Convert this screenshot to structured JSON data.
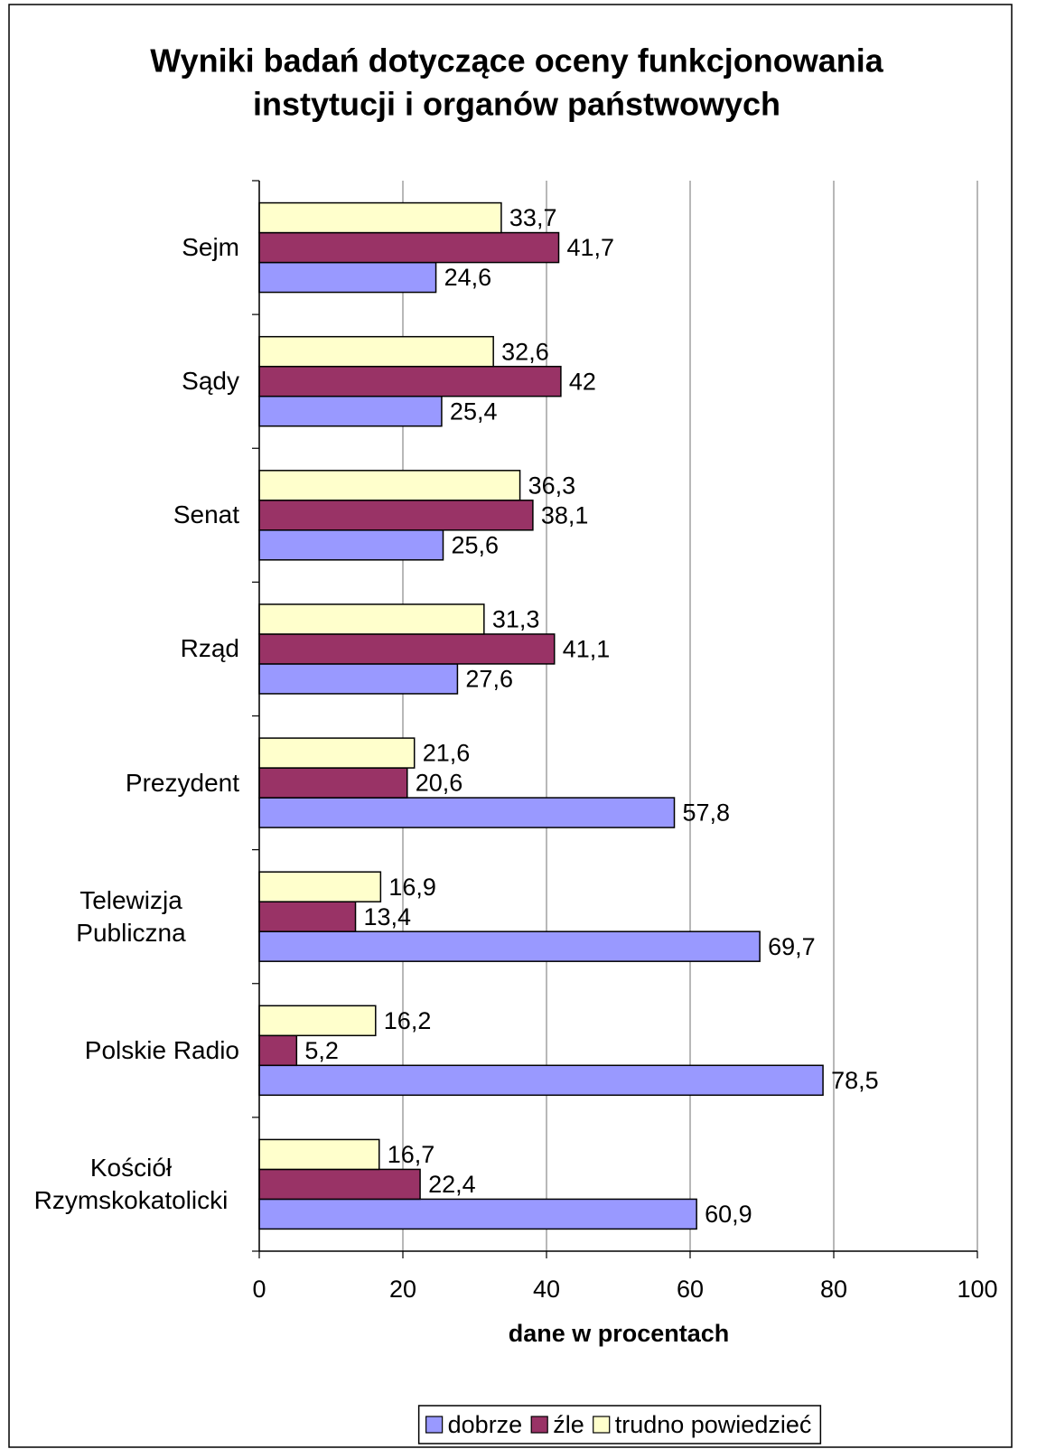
{
  "chart_data": {
    "type": "hbar",
    "title": [
      "Wyniki badań dotyczące oceny funkcjonowania",
      "instytucji i organów państwowych"
    ],
    "x_label": "dane w procentach",
    "categories": [
      "Sejm",
      "Sądy",
      "Senat",
      "Rząd",
      "Prezydent",
      "Telewizja Publiczna",
      "Polskie Radio",
      "Kościół Rzymskokatolicki"
    ],
    "series": [
      {
        "name": "dobrze",
        "color": "#9999ff",
        "values": [
          24.6,
          25.4,
          25.6,
          27.6,
          57.8,
          69.7,
          78.5,
          60.9
        ],
        "value_labels": [
          "24,6",
          "25,4",
          "25,6",
          "27,6",
          "57,8",
          "69,7",
          "78,5",
          "60,9"
        ]
      },
      {
        "name": "źle",
        "color": "#993366",
        "values": [
          41.7,
          42,
          38.1,
          41.1,
          20.6,
          13.4,
          5.2,
          22.4
        ],
        "value_labels": [
          "41,7",
          "42",
          "38,1",
          "41,1",
          "20,6",
          "13,4",
          "5,2",
          "22,4"
        ]
      },
      {
        "name": "trudno powiedzieć",
        "color": "#ffffcc",
        "values": [
          33.7,
          32.6,
          36.3,
          31.3,
          21.6,
          16.9,
          16.2,
          16.7
        ],
        "value_labels": [
          "33,7",
          "32,6",
          "36,3",
          "31,3",
          "21,6",
          "16,9",
          "16,2",
          "16,7"
        ]
      }
    ],
    "xlim": [
      0,
      100
    ],
    "xticks": [
      0,
      20,
      40,
      60,
      80,
      100
    ],
    "grid": true,
    "legend": "bottom"
  }
}
